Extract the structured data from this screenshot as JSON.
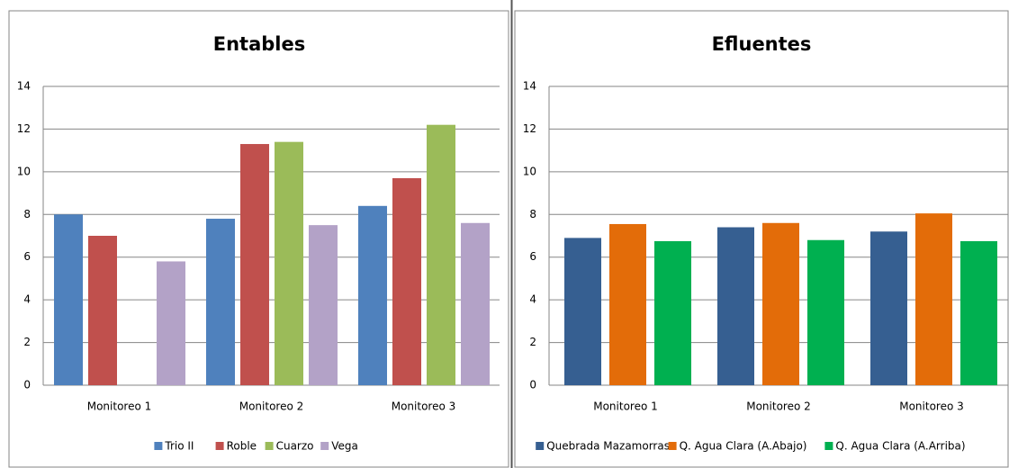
{
  "chart_data": [
    {
      "type": "bar",
      "title": "Entables",
      "categories": [
        "Monitoreo 1",
        "Monitoreo 2",
        "Monitoreo 3"
      ],
      "series": [
        {
          "name": "Trio II",
          "color": "#4f81bd",
          "values": [
            8,
            7.8,
            8.4
          ]
        },
        {
          "name": "Roble",
          "color": "#c0504d",
          "values": [
            7,
            11.3,
            9.7
          ]
        },
        {
          "name": "Cuarzo",
          "color": "#9bbb59",
          "values": [
            null,
            11.4,
            12.2
          ]
        },
        {
          "name": "Vega",
          "color": "#b3a2c7",
          "values": [
            5.8,
            7.5,
            7.6
          ]
        }
      ],
      "ylim": [
        0,
        14
      ],
      "yticks": [
        0,
        2,
        4,
        6,
        8,
        10,
        12,
        14
      ],
      "grid": true,
      "legend": "bottom"
    },
    {
      "type": "bar",
      "title": "Efluentes",
      "categories": [
        "Monitoreo 1",
        "Monitoreo 2",
        "Monitoreo 3"
      ],
      "series": [
        {
          "name": "Quebrada Mazamorras",
          "color": "#365f91",
          "values": [
            6.9,
            7.4,
            7.2
          ]
        },
        {
          "name": "Q. Agua Clara (A.Abajo)",
          "color": "#e36c09",
          "values": [
            7.55,
            7.6,
            8.05
          ]
        },
        {
          "name": "Q. Agua Clara (A.Arriba)",
          "color": "#00b050",
          "values": [
            6.75,
            6.8,
            6.75
          ]
        }
      ],
      "ylim": [
        0,
        14
      ],
      "yticks": [
        0,
        2,
        4,
        6,
        8,
        10,
        12,
        14
      ],
      "grid": true,
      "legend": "bottom"
    }
  ]
}
